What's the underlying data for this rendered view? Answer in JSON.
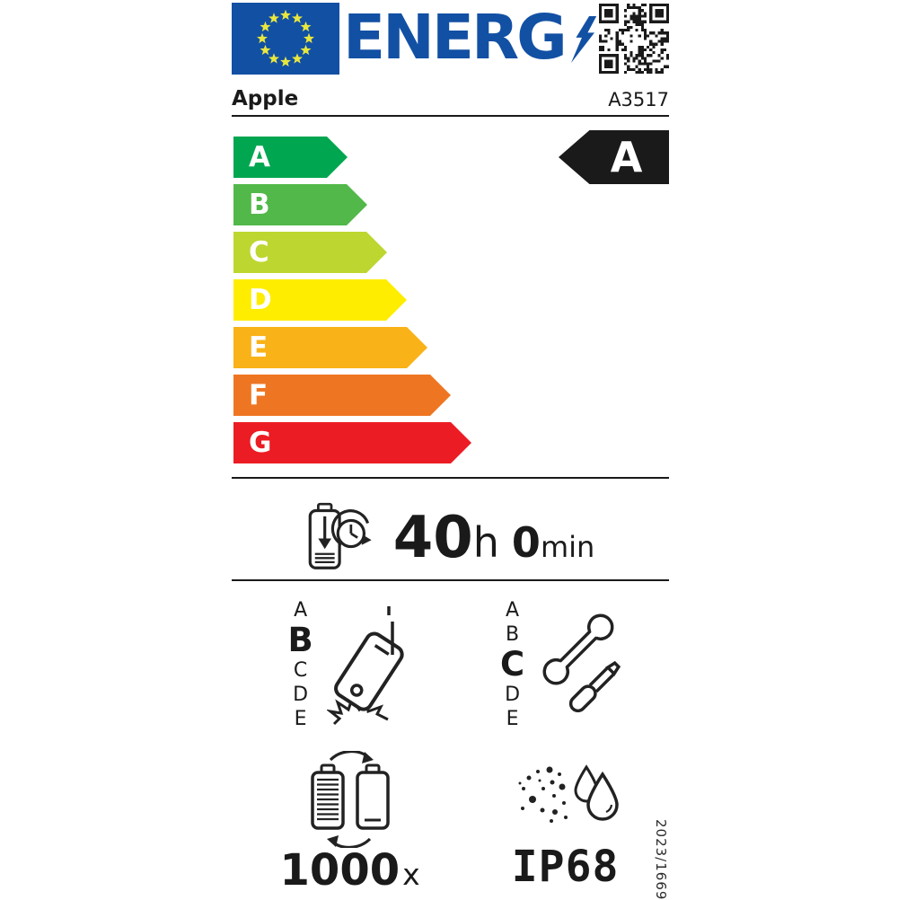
{
  "header": {
    "wordmark": "ENERG"
  },
  "supplier": {
    "brand": "Apple",
    "model": "A3517"
  },
  "energy_scale": {
    "rated_class": "A",
    "rated_arrow_color": "#1a1a1a",
    "classes": [
      {
        "letter": "A",
        "color": "#00a650"
      },
      {
        "letter": "B",
        "color": "#52b84a"
      },
      {
        "letter": "C",
        "color": "#bed630"
      },
      {
        "letter": "D",
        "color": "#ffed00"
      },
      {
        "letter": "E",
        "color": "#f9b217"
      },
      {
        "letter": "F",
        "color": "#ee7623"
      },
      {
        "letter": "G",
        "color": "#ec1c24"
      }
    ]
  },
  "battery_endurance": {
    "hours": "40",
    "hours_unit": "h",
    "minutes": "0",
    "minutes_unit": "min"
  },
  "drop_reliability": {
    "scale": [
      "A",
      "B",
      "C",
      "D",
      "E"
    ],
    "value": "B"
  },
  "repairability": {
    "scale": [
      "A",
      "B",
      "C",
      "D",
      "E"
    ],
    "value": "C"
  },
  "battery_cycles": {
    "value": "1000",
    "unit": "x"
  },
  "ingress_protection": {
    "rating": "IP68"
  },
  "regulation_number": "2023/1669",
  "colors": {
    "brand_blue": "#1250a4",
    "star_yellow": "#e9e73e",
    "ink": "#1a1a1a"
  }
}
